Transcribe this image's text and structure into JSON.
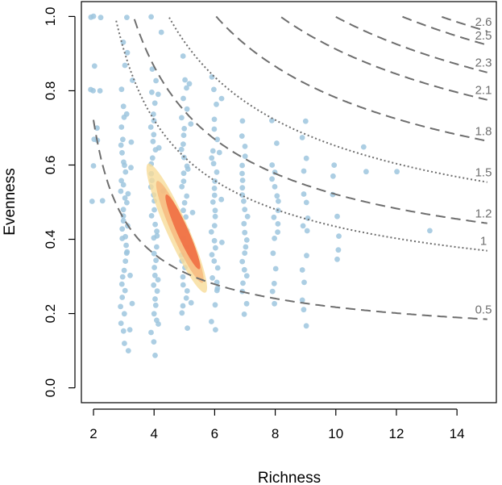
{
  "chart_data": {
    "type": "scatter",
    "title": "",
    "xlabel": "Richness",
    "ylabel": "Evenness",
    "xlim": [
      1.6,
      15.3
    ],
    "ylim": [
      -0.04,
      1.04
    ],
    "x_ticks": [
      "2",
      "4",
      "6",
      "8",
      "10",
      "12",
      "14"
    ],
    "y_ticks": [
      "0.0",
      "0.2",
      "0.4",
      "0.6",
      "0.8",
      "1.0"
    ],
    "grid": false,
    "legend": "none",
    "colors": {
      "points": "#9ec6de",
      "contour_outer": "#f7dc98",
      "contour_mid": "#f5b47a",
      "contour_inner": "#f06a3f",
      "isolines": "#6e6e6e"
    },
    "isolines": [
      {
        "label": "0.5",
        "value": 0.5,
        "style": "dashed"
      },
      {
        "label": "1",
        "value": 1.0,
        "style": "dotted"
      },
      {
        "label": "1.2",
        "value": 1.2,
        "style": "dashed"
      },
      {
        "label": "1.5",
        "value": 1.5,
        "style": "dotted"
      },
      {
        "label": "1.8",
        "value": 1.8,
        "style": "dashed"
      },
      {
        "label": "2.1",
        "value": 2.1,
        "style": "dashed"
      },
      {
        "label": "2.3",
        "value": 2.3,
        "style": "dashed"
      },
      {
        "label": "2.5",
        "value": 2.5,
        "style": "dashed"
      },
      {
        "label": "2.6",
        "value": 2.6,
        "style": "dashed"
      }
    ],
    "density_contours": [
      {
        "level": "outer",
        "center": [
          4.75,
          0.43
        ],
        "semi_major": 0.19,
        "semi_minor_x": 0.85
      },
      {
        "level": "mid",
        "center": [
          4.85,
          0.42
        ],
        "semi_major": 0.15,
        "semi_minor_x": 0.62
      },
      {
        "level": "inner",
        "center": [
          4.95,
          0.42
        ],
        "semi_major": 0.11,
        "semi_minor_x": 0.45
      }
    ],
    "points": [
      [
        2,
        1.0
      ],
      [
        2,
        1.0
      ],
      [
        2,
        0.8
      ],
      [
        2,
        0.8
      ],
      [
        2,
        0.67
      ],
      [
        2,
        0.5
      ],
      [
        2,
        0.87
      ],
      [
        2,
        0.6
      ],
      [
        2.2,
        1.0
      ],
      [
        2.2,
        0.8
      ],
      [
        2.2,
        0.67
      ],
      [
        2.2,
        0.5
      ],
      [
        2.2,
        0.7
      ],
      [
        3,
        1.0
      ],
      [
        3,
        0.93
      ],
      [
        3,
        0.87
      ],
      [
        3,
        0.8
      ],
      [
        3,
        0.76
      ],
      [
        3,
        0.73
      ],
      [
        3,
        0.7
      ],
      [
        3,
        0.67
      ],
      [
        3,
        0.65
      ],
      [
        3,
        0.63
      ],
      [
        3,
        0.61
      ],
      [
        3,
        0.6
      ],
      [
        3,
        0.58
      ],
      [
        3,
        0.56
      ],
      [
        3,
        0.55
      ],
      [
        3,
        0.53
      ],
      [
        3,
        0.51
      ],
      [
        3,
        0.5
      ],
      [
        3,
        0.48
      ],
      [
        3,
        0.46
      ],
      [
        3,
        0.45
      ],
      [
        3,
        0.43
      ],
      [
        3,
        0.41
      ],
      [
        3,
        0.4
      ],
      [
        3,
        0.38
      ],
      [
        3,
        0.36
      ],
      [
        3,
        0.34
      ],
      [
        3,
        0.32
      ],
      [
        3,
        0.3
      ],
      [
        3,
        0.28
      ],
      [
        3,
        0.26
      ],
      [
        3,
        0.24
      ],
      [
        3,
        0.22
      ],
      [
        3,
        0.2
      ],
      [
        3,
        0.17
      ],
      [
        3,
        0.15
      ],
      [
        3,
        0.12
      ],
      [
        3.2,
        0.9
      ],
      [
        3.2,
        0.83
      ],
      [
        3.2,
        0.74
      ],
      [
        3.2,
        0.66
      ],
      [
        3.2,
        0.59
      ],
      [
        3.2,
        0.52
      ],
      [
        3.2,
        0.44
      ],
      [
        3.2,
        0.37
      ],
      [
        3.2,
        0.3
      ],
      [
        3.2,
        0.23
      ],
      [
        3.2,
        0.16
      ],
      [
        3.2,
        0.1
      ],
      [
        4,
        1.0
      ],
      [
        4,
        0.86
      ],
      [
        4,
        0.83
      ],
      [
        4,
        0.8
      ],
      [
        4,
        0.77
      ],
      [
        4,
        0.74
      ],
      [
        4,
        0.72
      ],
      [
        4,
        0.7
      ],
      [
        4,
        0.68
      ],
      [
        4,
        0.66
      ],
      [
        4,
        0.64
      ],
      [
        4,
        0.62
      ],
      [
        4,
        0.6
      ],
      [
        4,
        0.58
      ],
      [
        4,
        0.56
      ],
      [
        4,
        0.54
      ],
      [
        4,
        0.52
      ],
      [
        4,
        0.5
      ],
      [
        4,
        0.48
      ],
      [
        4,
        0.46
      ],
      [
        4,
        0.44
      ],
      [
        4,
        0.42
      ],
      [
        4,
        0.4
      ],
      [
        4,
        0.38
      ],
      [
        4,
        0.36
      ],
      [
        4,
        0.34
      ],
      [
        4,
        0.32
      ],
      [
        4,
        0.3
      ],
      [
        4,
        0.28
      ],
      [
        4,
        0.26
      ],
      [
        4,
        0.24
      ],
      [
        4,
        0.22
      ],
      [
        4,
        0.2
      ],
      [
        4,
        0.18
      ],
      [
        4,
        0.15
      ],
      [
        4,
        0.12
      ],
      [
        4,
        0.09
      ],
      [
        4.2,
        0.96
      ],
      [
        4.2,
        0.79
      ],
      [
        4.2,
        0.65
      ],
      [
        4.2,
        0.53
      ],
      [
        4.2,
        0.41
      ],
      [
        4.2,
        0.29
      ],
      [
        4.2,
        0.17
      ],
      [
        5,
        0.89
      ],
      [
        5,
        0.83
      ],
      [
        5,
        0.81
      ],
      [
        5,
        0.78
      ],
      [
        5,
        0.75
      ],
      [
        5,
        0.73
      ],
      [
        5,
        0.7
      ],
      [
        5,
        0.68
      ],
      [
        5,
        0.66
      ],
      [
        5,
        0.64
      ],
      [
        5,
        0.62
      ],
      [
        5,
        0.6
      ],
      [
        5,
        0.58
      ],
      [
        5,
        0.56
      ],
      [
        5,
        0.54
      ],
      [
        5,
        0.52
      ],
      [
        5,
        0.5
      ],
      [
        5,
        0.48
      ],
      [
        5,
        0.46
      ],
      [
        5,
        0.44
      ],
      [
        5,
        0.42
      ],
      [
        5,
        0.4
      ],
      [
        5,
        0.38
      ],
      [
        5,
        0.36
      ],
      [
        5,
        0.34
      ],
      [
        5,
        0.32
      ],
      [
        5,
        0.3
      ],
      [
        5,
        0.28
      ],
      [
        5,
        0.26
      ],
      [
        5,
        0.24
      ],
      [
        5,
        0.22
      ],
      [
        5,
        0.2
      ],
      [
        5,
        0.16
      ],
      [
        5.2,
        0.82
      ],
      [
        5.2,
        0.71
      ],
      [
        5.2,
        0.59
      ],
      [
        5.2,
        0.47
      ],
      [
        5.2,
        0.35
      ],
      [
        5.2,
        0.23
      ],
      [
        6,
        0.84
      ],
      [
        6,
        0.8
      ],
      [
        6,
        0.76
      ],
      [
        6,
        0.72
      ],
      [
        6,
        0.7
      ],
      [
        6,
        0.67
      ],
      [
        6,
        0.64
      ],
      [
        6,
        0.62
      ],
      [
        6,
        0.6
      ],
      [
        6,
        0.58
      ],
      [
        6,
        0.56
      ],
      [
        6,
        0.54
      ],
      [
        6,
        0.52
      ],
      [
        6,
        0.5
      ],
      [
        6,
        0.48
      ],
      [
        6,
        0.46
      ],
      [
        6,
        0.44
      ],
      [
        6,
        0.42
      ],
      [
        6,
        0.4
      ],
      [
        6,
        0.38
      ],
      [
        6,
        0.36
      ],
      [
        6,
        0.34
      ],
      [
        6,
        0.32
      ],
      [
        6,
        0.3
      ],
      [
        6,
        0.28
      ],
      [
        6,
        0.26
      ],
      [
        6,
        0.22
      ],
      [
        6,
        0.18
      ],
      [
        6,
        0.16
      ],
      [
        6.2,
        0.78
      ],
      [
        6.2,
        0.63
      ],
      [
        6.2,
        0.51
      ],
      [
        6.2,
        0.39
      ],
      [
        6.2,
        0.27
      ],
      [
        7,
        0.72
      ],
      [
        7,
        0.68
      ],
      [
        7,
        0.65
      ],
      [
        7,
        0.62
      ],
      [
        7,
        0.6
      ],
      [
        7,
        0.58
      ],
      [
        7,
        0.56
      ],
      [
        7,
        0.54
      ],
      [
        7,
        0.52
      ],
      [
        7,
        0.5
      ],
      [
        7,
        0.48
      ],
      [
        7,
        0.46
      ],
      [
        7,
        0.44
      ],
      [
        7,
        0.42
      ],
      [
        7,
        0.4
      ],
      [
        7,
        0.38
      ],
      [
        7,
        0.36
      ],
      [
        7,
        0.34
      ],
      [
        7,
        0.32
      ],
      [
        7,
        0.3
      ],
      [
        7,
        0.28
      ],
      [
        7,
        0.26
      ],
      [
        7,
        0.23
      ],
      [
        7,
        0.2
      ],
      [
        8,
        0.72
      ],
      [
        8,
        0.66
      ],
      [
        8,
        0.6
      ],
      [
        8,
        0.58
      ],
      [
        8,
        0.56
      ],
      [
        8,
        0.54
      ],
      [
        8,
        0.52
      ],
      [
        8,
        0.5
      ],
      [
        8,
        0.48
      ],
      [
        8,
        0.46
      ],
      [
        8,
        0.44
      ],
      [
        8,
        0.42
      ],
      [
        8,
        0.4
      ],
      [
        8,
        0.36
      ],
      [
        8,
        0.32
      ],
      [
        8,
        0.28
      ],
      [
        8,
        0.26
      ],
      [
        8,
        0.23
      ],
      [
        9,
        0.72
      ],
      [
        9,
        0.67
      ],
      [
        9,
        0.62
      ],
      [
        9,
        0.58
      ],
      [
        9,
        0.52
      ],
      [
        9,
        0.5
      ],
      [
        9,
        0.46
      ],
      [
        9,
        0.44
      ],
      [
        9,
        0.42
      ],
      [
        9,
        0.36
      ],
      [
        9,
        0.32
      ],
      [
        9,
        0.28
      ],
      [
        9,
        0.24
      ],
      [
        9,
        0.21
      ],
      [
        9,
        0.17
      ],
      [
        10,
        0.6
      ],
      [
        10,
        0.57
      ],
      [
        10,
        0.52
      ],
      [
        10,
        0.46
      ],
      [
        10,
        0.41
      ],
      [
        10,
        0.37
      ],
      [
        10,
        0.35
      ],
      [
        11,
        0.65
      ],
      [
        11,
        0.58
      ],
      [
        12,
        0.58
      ],
      [
        13,
        0.42
      ]
    ]
  }
}
